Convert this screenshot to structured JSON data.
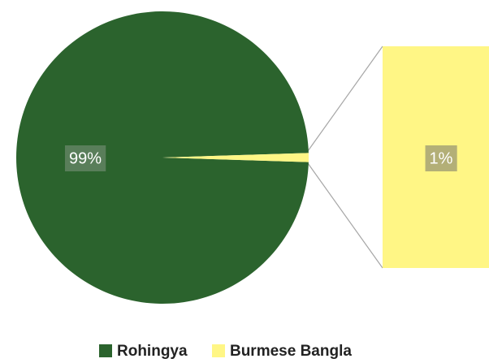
{
  "chart_data": {
    "type": "pie-of-bar",
    "categories": [
      "Rohingya",
      "Burmese Bangla"
    ],
    "values": [
      99,
      1
    ],
    "value_labels": [
      "99%",
      "1%"
    ],
    "colors": [
      "#2b632d",
      "#fff685"
    ],
    "legend": "bottom"
  }
}
